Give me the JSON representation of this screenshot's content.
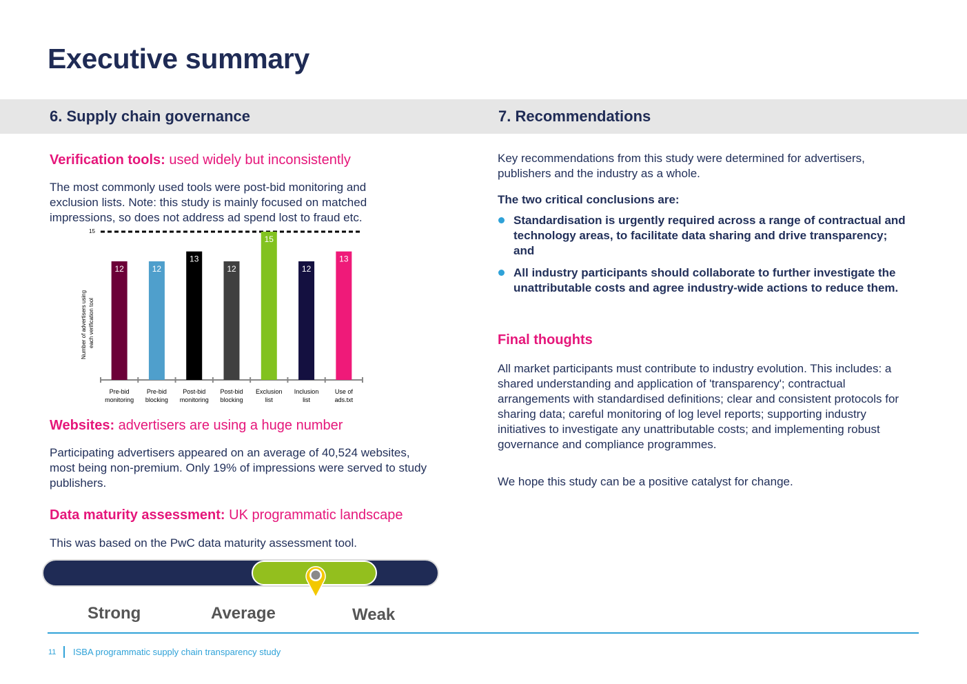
{
  "page": {
    "title": "Executive summary",
    "page_number": "11",
    "footer_text": "ISBA programmatic supply chain transparency study"
  },
  "left": {
    "heading": "6. Supply chain governance",
    "verification": {
      "label": "Verification tools:",
      "text": " used widely but inconsistently",
      "body": "The most commonly used tools were post-bid monitoring and exclusion lists. Note: this study is mainly focused on matched impressions, so does not address ad spend lost to fraud etc."
    },
    "websites": {
      "label": "Websites:",
      "text": " advertisers are using a huge number",
      "body": "Participating advertisers appeared on an average of 40,524 websites, most being non-premium. Only 19% of impressions were served to study publishers."
    },
    "maturity": {
      "label": "Data maturity assessment:",
      "text": " UK programmatic landscape",
      "body": "This was based on the PwC data maturity assessment tool.",
      "scale": [
        "Strong",
        "Average",
        "Weak"
      ],
      "position": 0.69
    }
  },
  "right": {
    "heading": "7. Recommendations",
    "intro": "Key recommendations from this study were determined for advertisers, publishers and the industry as a whole.",
    "conclusions_title": "The two critical conclusions are:",
    "bullets": [
      "Standardisation is urgently required across a range of contractual and technology areas, to facilitate data sharing and drive transparency; and",
      "All industry participants should collaborate to further investigate the unattributable costs and agree industry-wide actions to reduce them."
    ],
    "final_title": "Final thoughts",
    "final_body": "All market participants must contribute to industry evolution. This includes: a shared understanding and application of 'transparency'; contractual arrangements with standardised definitions; clear and consistent protocols for sharing data; careful monitoring of log level reports; supporting industry initiatives to investigate any unattributable costs; and implementing robust governance and compliance programmes.",
    "closing": "We hope this study can be a positive catalyst for change."
  },
  "chart_data": {
    "type": "bar",
    "title": "",
    "xlabel": "",
    "ylabel": "Number of advertisers using each verification tool",
    "categories": [
      [
        "Pre-bid",
        "monitoring"
      ],
      [
        "Pre-bid",
        "blocking"
      ],
      [
        "Post-bid",
        "monitoring"
      ],
      [
        "Post-bid",
        "blocking"
      ],
      [
        "Exclusion",
        "list"
      ],
      [
        "Inclusion",
        "list"
      ],
      [
        "Use of",
        "ads.txt"
      ]
    ],
    "values": [
      12,
      12,
      13,
      12,
      15,
      12,
      13
    ],
    "colors": [
      "#6c0038",
      "#4f9fcc",
      "#000000",
      "#404040",
      "#82c21f",
      "#141040",
      "#ef1a79"
    ],
    "ylim": [
      0,
      15
    ],
    "reference_line": {
      "value": 15,
      "label": "15"
    }
  }
}
